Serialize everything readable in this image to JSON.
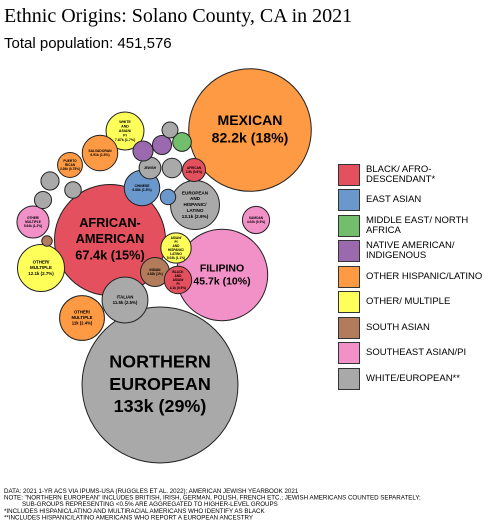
{
  "chart_data": {
    "type": "packed-bubble",
    "title": "Ethnic Origins: Solano County, CA in 2021",
    "subtitle": "Total population: 451,576",
    "groups": [
      {
        "name": "BLACK/ AFRO-DESCENDANT*",
        "color": "#e5505e"
      },
      {
        "name": "EAST ASIAN",
        "color": "#6b98cc"
      },
      {
        "name": "MIDDLE EAST/ NORTH AFRICA",
        "color": "#72be6c"
      },
      {
        "name": "NATIVE AMERICAN/ INDIGENOUS",
        "color": "#9b6aae"
      },
      {
        "name": "OTHER HISPANIC/LATINO",
        "color": "#ff9a44"
      },
      {
        "name": "OTHER/ MULTIPLE",
        "color": "#ffff5a"
      },
      {
        "name": "SOUTH ASIAN",
        "color": "#b27b5c"
      },
      {
        "name": "SOUTHEAST ASIAN/PI",
        "color": "#f290c8"
      },
      {
        "name": "WHITE/EUROPEAN**",
        "color": "#a9a9a9"
      }
    ],
    "bubbles": [
      {
        "name": "NORTHERN EUROPEAN",
        "group": 8,
        "value": 133,
        "value_label": "133k (29%)"
      },
      {
        "name": "MEXICAN",
        "group": 4,
        "value": 82.2,
        "value_label": "82.2k (18%)"
      },
      {
        "name": "AFRICAN-AMERICAN",
        "group": 0,
        "value": 67.4,
        "value_label": "67.4k (15%)"
      },
      {
        "name": "FILIPINO",
        "group": 7,
        "value": 45.7,
        "value_label": "45.7k (10%)"
      },
      {
        "name": "EUROPEAN AND HISPANIC/LATINO",
        "group": 8,
        "value": 13.1,
        "value_label": "13.1k (2.9%)"
      },
      {
        "name": "OTHER/MULTIPLE",
        "group": 5,
        "value": 12.1,
        "value_label": "12.1k (2.7%)"
      },
      {
        "name": "ITALIAN",
        "group": 8,
        "value": 11.5,
        "value_label": "11.5k (2.5%)"
      },
      {
        "name": "OTHER/MULTIPLE",
        "group": 4,
        "value": 11,
        "value_label": "11k (2.4%)"
      },
      {
        "name": "WHITE AND ASIAN/PI",
        "group": 5,
        "value": 7.87,
        "value_label": "7.87k (1.7%)"
      },
      {
        "name": "SALVADORAN",
        "group": 4,
        "value": 6.91,
        "value_label": "6.91k (1.5%)"
      },
      {
        "name": "CHINESE",
        "group": 1,
        "value": 6.88,
        "value_label": "6.88k (1.5%)"
      },
      {
        "name": "OTHER/MULTIPLE",
        "group": 7,
        "value": 5.64,
        "value_label": "5.64k (1.2%)"
      },
      {
        "name": "ASIAN/PI AND HISPANIC/LATINO",
        "group": 5,
        "value": 5.03,
        "value_label": "5.03k (1.1%)"
      },
      {
        "name": "INDIAN",
        "group": 6,
        "value": 4.62,
        "value_label": "4.62k (1%)"
      },
      {
        "name": "BLACK AND ASIAN/PI",
        "group": 0,
        "value": 4.1,
        "value_label": "4.1k (0.9%)"
      },
      {
        "name": "SAMOAN",
        "group": 7,
        "value": 4.03,
        "value_label": "4.03k (0.9%)"
      },
      {
        "name": "PUERTO RICAN",
        "group": 4,
        "value": 3.39,
        "value_label": "3.39k (0.75%)"
      },
      {
        "name": "AFRICAN",
        "group": 0,
        "value": 2.9,
        "value_label": "2.9k (0.6%)"
      },
      {
        "name": "JEWISH",
        "group": 8,
        "value": 2.6,
        "value_label": null
      },
      {
        "name": null,
        "group": 3,
        "value": 2.2,
        "value_label": null
      },
      {
        "name": null,
        "group": 3,
        "value": 2.0,
        "value_label": null
      },
      {
        "name": null,
        "group": 2,
        "value": 1.9,
        "value_label": null
      },
      {
        "name": null,
        "group": 8,
        "value": 2.1,
        "value_label": null
      },
      {
        "name": null,
        "group": 8,
        "value": 1.8,
        "value_label": null
      },
      {
        "name": null,
        "group": 8,
        "value": 1.6,
        "value_label": null
      },
      {
        "name": null,
        "group": 8,
        "value": 1.5,
        "value_label": null
      },
      {
        "name": null,
        "group": 8,
        "value": 1.4,
        "value_label": null
      },
      {
        "name": null,
        "group": 1,
        "value": 1.3,
        "value_label": null
      },
      {
        "name": null,
        "group": 6,
        "value": 0.6,
        "value_label": null
      }
    ],
    "notes": [
      "DATA: 2021 1-YR ACS VIA IPUMS-USA (RUGGLES ET AL. 2022); AMERICAN JEWISH YEARBOOK 2021",
      "NOTE: \"NORTHERN EUROPEAN\" INCLUDES BRITISH, IRISH, GERMAN, POLISH, FRENCH ETC.; JEWISH AMERICANS COUNTED SEPARATELY;",
      "SUB-GROUPS REPRESENTING <0.5% ARE AGGREGATED TO HIGHER-LEVEL GROUPS",
      "*INCLUDES HISPANIC/LATINO AND MULTIRACIAL AMERICANS WHO IDENTIFY AS BLACK",
      "**INCLUDES HISPANIC/LATINO AMERICANS WHO REPORT A EUROPEAN ANCESTRY"
    ]
  }
}
